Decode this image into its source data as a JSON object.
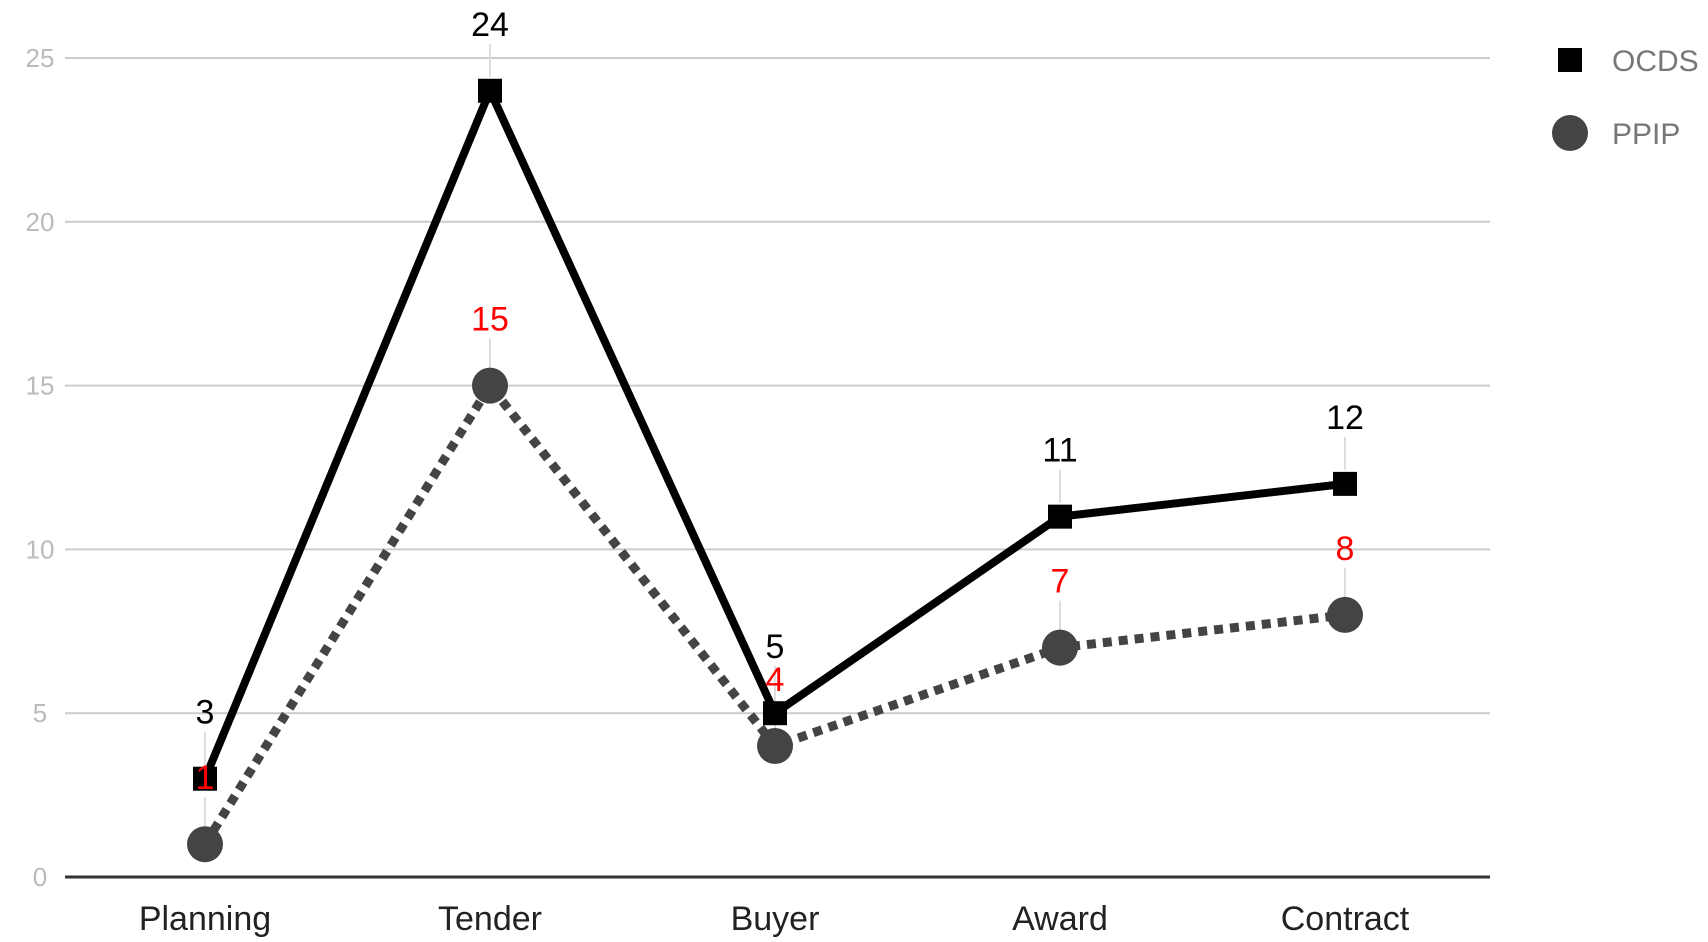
{
  "chart_data": {
    "type": "line",
    "categories": [
      "Planning",
      "Tender",
      "Buyer",
      "Award",
      "Contract"
    ],
    "ylim": [
      0,
      25
    ],
    "yticks": [
      0,
      5,
      10,
      15,
      20,
      25
    ],
    "grid": true,
    "legend_position": "top-right",
    "series": [
      {
        "name": "OCDS",
        "values": [
          3,
          24,
          5,
          11,
          12
        ],
        "color": "#000000",
        "line_style": "solid",
        "marker": "square",
        "label_color": "#000000"
      },
      {
        "name": "PPIP",
        "values": [
          1,
          15,
          4,
          7,
          8
        ],
        "color": "#444444",
        "line_style": "dotted",
        "marker": "circle",
        "label_color": "#ff0000"
      }
    ]
  },
  "colors": {
    "grid": "#cccccc",
    "axis": "#333333",
    "tick_label": "#bbbbbb",
    "category_label": "#222222",
    "legend_text": "#777777",
    "leader": "#dddddd"
  }
}
